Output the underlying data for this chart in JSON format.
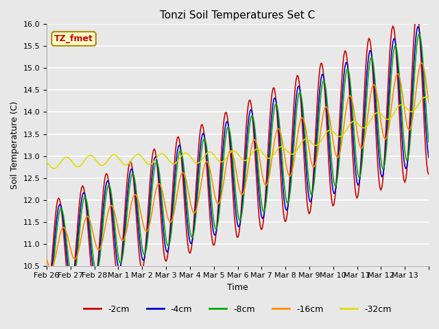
{
  "title": "Tonzi Soil Temperatures Set C",
  "xlabel": "Time",
  "ylabel": "Soil Temperature (C)",
  "ylim": [
    10.5,
    16.0
  ],
  "series_colors": {
    "-2cm": "#cc0000",
    "-4cm": "#0000cc",
    "-8cm": "#00aa00",
    "-16cm": "#ff8800",
    "-32cm": "#dddd00"
  },
  "legend_label": "TZ_fmet",
  "legend_box_color": "#ffffcc",
  "legend_box_edge": "#aa8800",
  "bg_color": "#e8e8e8",
  "grid_color": "#ffffff",
  "tick_positions": [
    0,
    1,
    2,
    3,
    4,
    5,
    6,
    7,
    8,
    9,
    10,
    11,
    12,
    13,
    14,
    15,
    16
  ],
  "tick_labels": [
    "Feb 26",
    "Feb 27",
    "Feb 28",
    "Mar 1",
    "Mar 2",
    "Mar 3",
    "Mar 4",
    "Mar 5",
    "Mar 6",
    "Mar 7",
    "Mar 8",
    "Mar 9",
    "Mar 10",
    "Mar 11",
    "Mar 12",
    "Mar 13",
    ""
  ],
  "yticks": [
    10.5,
    11.0,
    11.5,
    12.0,
    12.5,
    13.0,
    13.5,
    14.0,
    14.5,
    15.0,
    15.5,
    16.0
  ]
}
